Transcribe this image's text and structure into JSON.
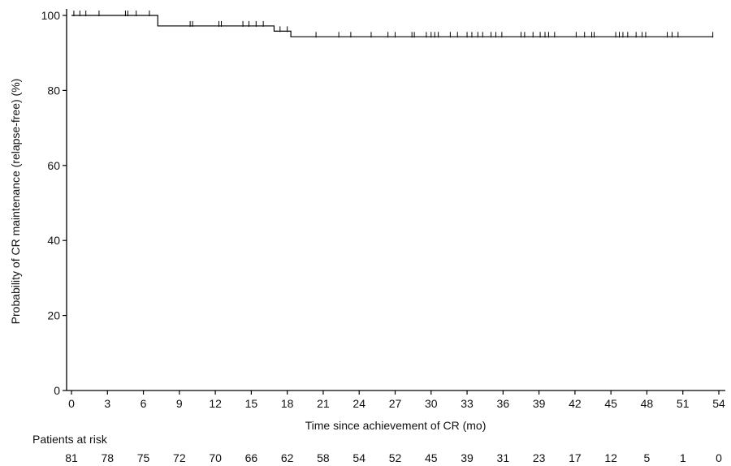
{
  "chart_data": {
    "type": "line",
    "subtype": "kaplan-meier",
    "xlabel": "Time since achievement of CR (mo)",
    "ylabel": "Probability of CR maintenance (relapse-free) (%)",
    "xlim": [
      0,
      54
    ],
    "ylim": [
      0,
      100
    ],
    "xticks": [
      0,
      3,
      6,
      9,
      12,
      15,
      18,
      21,
      24,
      27,
      30,
      33,
      36,
      39,
      42,
      45,
      48,
      51,
      54
    ],
    "yticks": [
      0,
      20,
      40,
      60,
      80,
      100
    ],
    "grid": false,
    "series": [
      {
        "steps": [
          {
            "x": 0,
            "y": 100
          },
          {
            "x": 7.2,
            "y": 97.2
          },
          {
            "x": 16.9,
            "y": 95.8
          },
          {
            "x": 18.3,
            "y": 94.3
          },
          {
            "x": 53.5,
            "y": 94.3
          }
        ],
        "censored": [
          0.2,
          0.7,
          1.2,
          2.3,
          4.5,
          4.7,
          5.4,
          6.5,
          9.9,
          10.1,
          12.3,
          12.5,
          14.3,
          14.8,
          15.4,
          16.0,
          17.4,
          18.0,
          20.4,
          22.3,
          23.3,
          25.0,
          26.4,
          27.0,
          28.4,
          28.6,
          29.6,
          30.0,
          30.3,
          30.6,
          31.6,
          32.2,
          33.0,
          33.4,
          33.9,
          34.3,
          35.0,
          35.4,
          35.9,
          37.5,
          37.8,
          38.5,
          39.1,
          39.5,
          39.8,
          40.3,
          42.1,
          42.8,
          43.4,
          43.6,
          45.4,
          45.7,
          46.0,
          46.4,
          47.1,
          47.6,
          47.9,
          49.7,
          50.1,
          50.6,
          53.5
        ]
      }
    ],
    "risk_table": {
      "title": "Patients at risk",
      "times": [
        0,
        3,
        6,
        9,
        12,
        15,
        18,
        21,
        24,
        27,
        30,
        33,
        36,
        39,
        42,
        45,
        48,
        51,
        54
      ],
      "counts": [
        "81",
        "78",
        "75",
        "72",
        "70",
        "66",
        "62",
        "58",
        "54",
        "52",
        "45",
        "39",
        "31",
        "23",
        "17",
        "12",
        "5",
        "1",
        "0"
      ]
    }
  }
}
